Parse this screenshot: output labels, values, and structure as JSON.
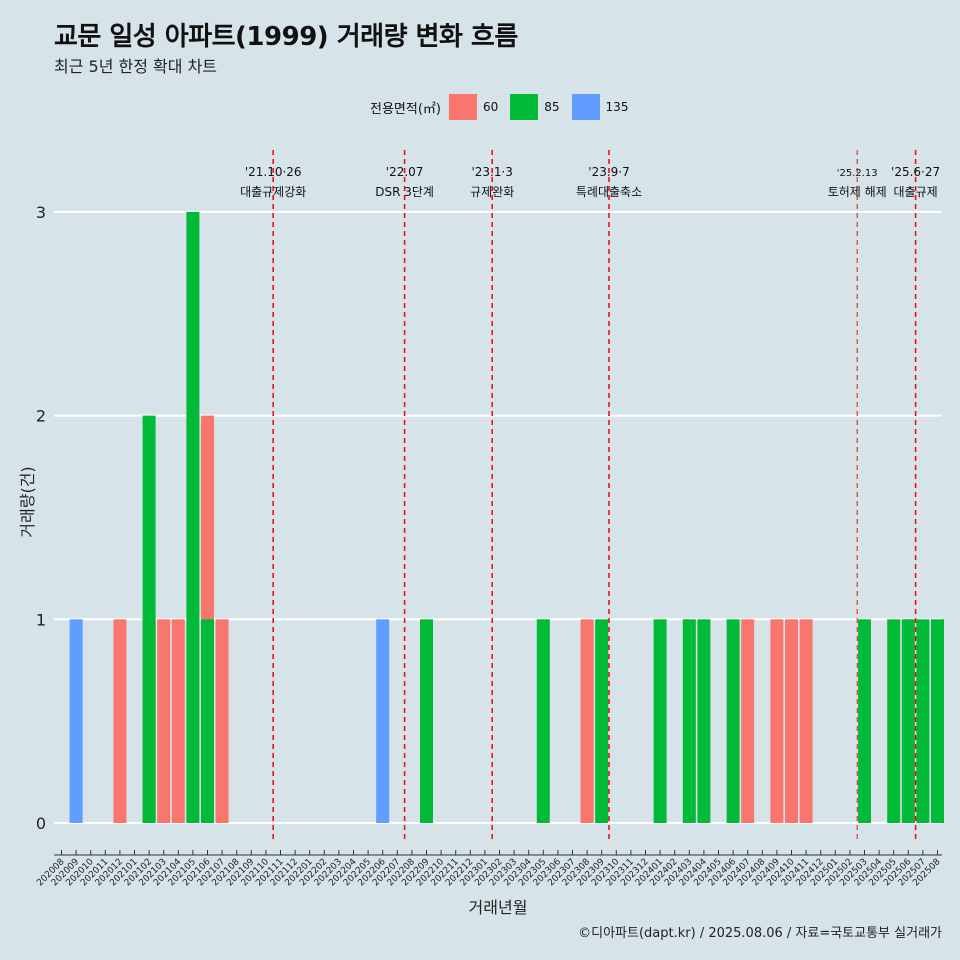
{
  "chart_data": {
    "type": "bar",
    "title": "교문 일성 아파트(1999) 거래량 변화 흐름",
    "subtitle": "최근 5년 한정 확대 차트",
    "xlabel": "거래년월",
    "ylabel": "거래량(건)",
    "ylim": [
      0,
      3
    ],
    "yticks": [
      "0",
      "1",
      "2",
      "3"
    ],
    "caption": "©디아파트(dapt.kr) / 2025.08.06 / 자료=국토교통부 실거래가",
    "legend": {
      "title": "전용면적(㎡)",
      "entries": [
        {
          "label": "60",
          "color": "#f8766d"
        },
        {
          "label": "85",
          "color": "#00ba38"
        },
        {
          "label": "135",
          "color": "#619cff"
        }
      ]
    },
    "categories": [
      "202008",
      "202009",
      "202010",
      "202011",
      "202012",
      "202101",
      "202102",
      "202103",
      "202104",
      "202105",
      "202106",
      "202107",
      "202108",
      "202109",
      "202110",
      "202111",
      "202112",
      "202201",
      "202202",
      "202203",
      "202204",
      "202205",
      "202206",
      "202207",
      "202208",
      "202209",
      "202210",
      "202211",
      "202212",
      "202301",
      "202302",
      "202303",
      "202304",
      "202305",
      "202306",
      "202307",
      "202308",
      "202309",
      "202310",
      "202311",
      "202312",
      "202401",
      "202402",
      "202403",
      "202404",
      "202405",
      "202406",
      "202407",
      "202408",
      "202409",
      "202410",
      "202411",
      "202412",
      "202501",
      "202502",
      "202503",
      "202504",
      "202505",
      "202506",
      "202507",
      "202508"
    ],
    "bars": [
      {
        "month": "202009",
        "size": "135",
        "value": 1
      },
      {
        "month": "202012",
        "size": "60",
        "value": 1
      },
      {
        "month": "202102",
        "size": "60",
        "value": 1
      },
      {
        "month": "202102",
        "size": "85",
        "value": 2
      },
      {
        "month": "202103",
        "size": "60",
        "value": 1
      },
      {
        "month": "202104",
        "size": "60",
        "value": 1
      },
      {
        "month": "202105",
        "size": "85",
        "value": 3
      },
      {
        "month": "202106",
        "size": "60",
        "value": 2
      },
      {
        "month": "202106",
        "size": "85",
        "value": 1
      },
      {
        "month": "202107",
        "size": "60",
        "value": 1
      },
      {
        "month": "202206",
        "size": "135",
        "value": 1
      },
      {
        "month": "202209",
        "size": "85",
        "value": 1
      },
      {
        "month": "202305",
        "size": "85",
        "value": 1
      },
      {
        "month": "202308",
        "size": "60",
        "value": 1
      },
      {
        "month": "202309",
        "size": "85",
        "value": 1
      },
      {
        "month": "202401",
        "size": "85",
        "value": 1
      },
      {
        "month": "202403",
        "size": "85",
        "value": 1
      },
      {
        "month": "202404",
        "size": "85",
        "value": 1
      },
      {
        "month": "202406",
        "size": "85",
        "value": 1
      },
      {
        "month": "202407",
        "size": "60",
        "value": 1
      },
      {
        "month": "202409",
        "size": "60",
        "value": 1
      },
      {
        "month": "202410",
        "size": "60",
        "value": 1
      },
      {
        "month": "202411",
        "size": "60",
        "value": 1
      },
      {
        "month": "202503",
        "size": "85",
        "value": 1
      },
      {
        "month": "202505",
        "size": "85",
        "value": 1
      },
      {
        "month": "202506",
        "size": "60",
        "value": 1
      },
      {
        "month": "202506",
        "size": "85",
        "value": 1
      },
      {
        "month": "202507",
        "size": "85",
        "value": 1
      },
      {
        "month": "202508",
        "size": "85",
        "value": 1
      }
    ],
    "annotations": [
      {
        "month_index": 14.5,
        "date": "'21.10·26",
        "label": "대출규제강화",
        "style": "bold"
      },
      {
        "month_index": 23.5,
        "date": "'22.07",
        "label": "DSR 3단계",
        "style": "bold"
      },
      {
        "month_index": 29.5,
        "date": "'23.1·3",
        "label": "규제완화",
        "style": "bold"
      },
      {
        "month_index": 37.5,
        "date": "'23.9·7",
        "label": "특례대출축소",
        "style": "bold"
      },
      {
        "month_index": 54.5,
        "date": "'25.2.13",
        "label": "토허제 해제",
        "style": "thin"
      },
      {
        "month_index": 58.5,
        "date": "'25.6·27",
        "label": "대출규제",
        "style": "bold"
      }
    ]
  }
}
